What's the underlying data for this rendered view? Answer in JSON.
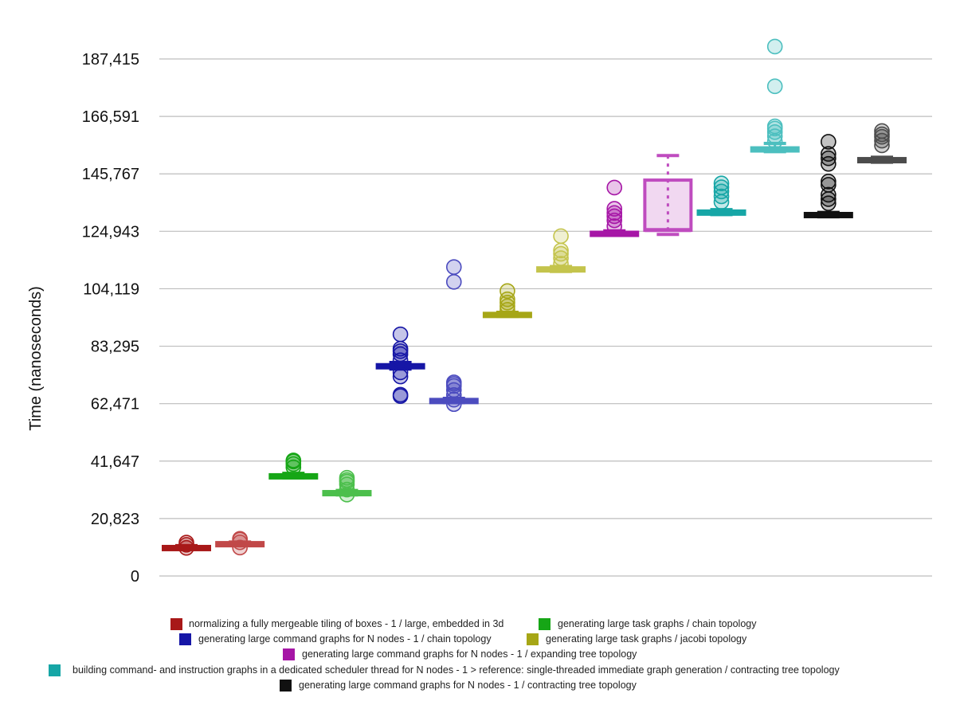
{
  "chart_data": {
    "type": "box",
    "title": "",
    "xlabel": "",
    "ylabel": "Time (nanoseconds)",
    "ylim": [
      0,
      187415
    ],
    "yticks": [
      "0",
      "20,823",
      "41,647",
      "62,471",
      "83,295",
      "104,119",
      "124,943",
      "145,767",
      "166,591",
      "187,415"
    ],
    "ytick_values": [
      0,
      20823,
      41647,
      62471,
      83295,
      104119,
      124943,
      145767,
      166591,
      187415
    ],
    "grid": true,
    "legend_position": "bottom",
    "legend": [
      {
        "label": "normalizing a fully mergeable tiling of boxes - 1 / large, embedded in 3d",
        "color": "#a81818"
      },
      {
        "label": "generating large task graphs / chain topology",
        "color": "#16a616"
      },
      {
        "label": "generating large command graphs for N nodes - 1 / chain topology",
        "color": "#1616a6"
      },
      {
        "label": "generating large task graphs / jacobi topology",
        "color": "#a6a616"
      },
      {
        "label": "generating large command graphs for N nodes - 1 / expanding tree topology",
        "color": "#a616a6"
      },
      {
        "label": "building command- and instruction graphs in a dedicated scheduler thread for N nodes - 1 > reference: single-threaded immediate graph generation / contracting tree topology",
        "color": "#16a6a6"
      },
      {
        "label": "generating large command graphs for N nodes - 1 / contracting tree topology",
        "color": "#111111"
      }
    ],
    "series": [
      {
        "color": "#a81818",
        "median": 10300,
        "q1": 9900,
        "q3": 10700,
        "whisker_low": 9700,
        "whisker_high": 11000,
        "outliers": [
          10200,
          11300,
          12100
        ]
      },
      {
        "color": "#c14848",
        "median": 11700,
        "q1": 11300,
        "q3": 12100,
        "whisker_low": 11000,
        "whisker_high": 12300,
        "outliers": [
          10300,
          12200,
          13200,
          13500
        ]
      },
      {
        "color": "#16a616",
        "median": 36300,
        "q1": 36000,
        "q3": 36700,
        "whisker_low": 35600,
        "whisker_high": 37200,
        "outliers": [
          39400,
          40600,
          41500,
          41900
        ]
      },
      {
        "color": "#4cbf4c",
        "median": 30200,
        "q1": 29800,
        "q3": 30600,
        "whisker_low": 29400,
        "whisker_high": 31000,
        "outliers": [
          29500,
          31300,
          33200,
          34200,
          34800,
          35600
        ]
      },
      {
        "color": "#1616a6",
        "median": 76200,
        "q1": 75800,
        "q3": 76600,
        "whisker_low": 75000,
        "whisker_high": 77400,
        "outliers": [
          65200,
          65700,
          72300,
          73800,
          78200,
          80400,
          81500,
          82400,
          87600
        ]
      },
      {
        "color": "#4c4cbf",
        "median": 63700,
        "q1": 63300,
        "q3": 64000,
        "whisker_low": 62800,
        "whisker_high": 64400,
        "outliers": [
          62300,
          63900,
          65600,
          67400,
          68900,
          69600,
          70200,
          106600,
          112000
        ]
      },
      {
        "color": "#a6a616",
        "median": 94800,
        "q1": 94500,
        "q3": 95200,
        "whisker_low": 94100,
        "whisker_high": 95600,
        "outliers": [
          96500,
          97800,
          99100,
          100300,
          103300
        ]
      },
      {
        "color": "#c4c44c",
        "median": 111300,
        "q1": 110900,
        "q3": 111700,
        "whisker_low": 110400,
        "whisker_high": 112200,
        "outliers": [
          113200,
          115200,
          116800,
          118000,
          123200
        ]
      },
      {
        "color": "#a616a6",
        "median": 124200,
        "q1": 123900,
        "q3": 124600,
        "whisker_low": 123600,
        "whisker_high": 125100,
        "outliers": [
          126800,
          128900,
          130400,
          131600,
          133100,
          140800
        ]
      },
      {
        "color": "#bf4cbf",
        "median": 125400,
        "q1": 125300,
        "q3": 143500,
        "whisker_low": 123800,
        "whisker_high": 152400,
        "outliers": []
      },
      {
        "color": "#16a6a6",
        "median": 131900,
        "q1": 131500,
        "q3": 132300,
        "whisker_low": 131000,
        "whisker_high": 132800,
        "outliers": [
          135600,
          137600,
          139400,
          140900,
          142300
        ]
      },
      {
        "color": "#4cbfbf",
        "median": 154800,
        "q1": 154400,
        "q3": 155200,
        "whisker_low": 153800,
        "whisker_high": 156800,
        "outliers": [
          157600,
          159400,
          160900,
          162200,
          163000,
          177500,
          191900
        ]
      },
      {
        "color": "#111111",
        "median": 131000,
        "q1": 130700,
        "q3": 131400,
        "whisker_low": 130200,
        "whisker_high": 131800,
        "outliers": [
          135100,
          136600,
          138200,
          141800,
          143000,
          149400,
          151400,
          153000,
          157400
        ]
      },
      {
        "color": "#4c4c4c",
        "median": 150900,
        "q1": 150500,
        "q3": 151300,
        "whisker_low": 150000,
        "whisker_high": 151800,
        "outliers": [
          156100,
          157800,
          159200,
          160100,
          161300
        ]
      }
    ]
  }
}
